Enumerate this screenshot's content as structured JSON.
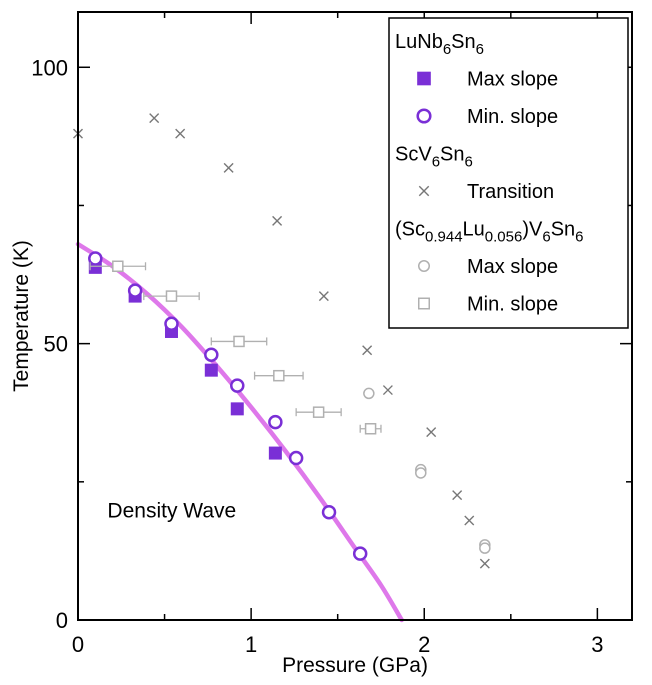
{
  "chart_data": {
    "type": "scatter",
    "xlabel": "Pressure (GPa)",
    "ylabel": "Temperature (K)",
    "xlim": [
      0,
      3.2
    ],
    "ylim": [
      0,
      110
    ],
    "x_ticks": [
      "0",
      "1",
      "2",
      "3"
    ],
    "y_ticks": [
      "0",
      "50",
      "100"
    ],
    "annotation": "Density Wave",
    "legend": {
      "position": "top-right",
      "groups": [
        {
          "title_parts": [
            [
              "LuNb",
              ""
            ],
            [
              "6",
              "sub"
            ],
            [
              "Sn",
              ""
            ],
            [
              "6",
              "sub"
            ]
          ],
          "entries": [
            {
              "label": "Max slope",
              "marker": "filled-square",
              "color": "#7a2fd6"
            },
            {
              "label": "Min. slope",
              "marker": "open-circle",
              "color": "#7a2fd6"
            }
          ]
        },
        {
          "title_parts": [
            [
              "ScV",
              ""
            ],
            [
              "6",
              "sub"
            ],
            [
              "Sn",
              ""
            ],
            [
              "6",
              "sub"
            ]
          ],
          "entries": [
            {
              "label": "Transition",
              "marker": "cross",
              "color": "#777777"
            }
          ]
        },
        {
          "title_parts": [
            [
              "(Sc",
              ""
            ],
            [
              "0.944",
              "sub"
            ],
            [
              "Lu",
              ""
            ],
            [
              "0.056",
              "sub"
            ],
            [
              ")V",
              ""
            ],
            [
              "6",
              "sub"
            ],
            [
              "Sn",
              ""
            ],
            [
              "6",
              "sub"
            ]
          ],
          "entries": [
            {
              "label": "Max slope",
              "marker": "open-circle",
              "color": "#b0b0b0"
            },
            {
              "label": "Min. slope",
              "marker": "open-square",
              "color": "#b0b0b0"
            }
          ]
        }
      ]
    },
    "series": [
      {
        "marker": "filled-square",
        "color": "#7a2fd6",
        "points": [
          [
            0.1,
            63.8
          ],
          [
            0.33,
            58.6
          ],
          [
            0.54,
            52.2
          ],
          [
            0.77,
            45.2
          ],
          [
            0.92,
            38.2
          ],
          [
            1.14,
            30.2
          ]
        ]
      },
      {
        "marker": "open-circle",
        "color": "#7a2fd6",
        "points": [
          [
            0.1,
            65.4
          ],
          [
            0.33,
            59.6
          ],
          [
            0.54,
            53.6
          ],
          [
            0.77,
            48.0
          ],
          [
            0.92,
            42.4
          ],
          [
            1.14,
            35.8
          ],
          [
            1.26,
            29.3
          ],
          [
            1.45,
            19.5
          ],
          [
            1.63,
            12.0
          ]
        ]
      },
      {
        "marker": "cross",
        "color": "#777777",
        "points": [
          [
            0.0,
            88.0
          ],
          [
            0.44,
            90.8
          ],
          [
            0.59,
            88.0
          ],
          [
            0.87,
            81.8
          ],
          [
            1.15,
            72.2
          ],
          [
            1.42,
            58.6
          ],
          [
            1.67,
            48.8
          ],
          [
            1.79,
            41.6
          ],
          [
            2.04,
            34.0
          ],
          [
            2.19,
            22.6
          ],
          [
            2.26,
            18.0
          ],
          [
            2.35,
            10.2
          ]
        ]
      },
      {
        "marker": "open-circle",
        "color": "#b0b0b0",
        "points": [
          [
            1.68,
            41.0
          ],
          [
            1.98,
            27.2
          ],
          [
            1.98,
            26.6
          ],
          [
            2.35,
            13.6
          ],
          [
            2.35,
            13.0
          ]
        ]
      },
      {
        "marker": "open-square",
        "color": "#b0b0b0",
        "points": [
          [
            0.23,
            64.0,
            0.16
          ],
          [
            0.54,
            58.6,
            0.16
          ],
          [
            0.93,
            50.4,
            0.16
          ],
          [
            1.16,
            44.2,
            0.14
          ],
          [
            1.39,
            37.6,
            0.13
          ],
          [
            1.69,
            34.6,
            0.06
          ]
        ]
      }
    ],
    "fit_curve": {
      "color": "#de78ea",
      "points": [
        [
          0.0,
          68.0
        ],
        [
          0.2,
          64.0
        ],
        [
          0.4,
          59.0
        ],
        [
          0.6,
          53.0
        ],
        [
          0.8,
          46.0
        ],
        [
          1.0,
          38.5
        ],
        [
          1.2,
          30.5
        ],
        [
          1.4,
          22.0
        ],
        [
          1.6,
          13.0
        ],
        [
          1.75,
          6.3
        ],
        [
          1.87,
          0.0
        ]
      ]
    }
  }
}
